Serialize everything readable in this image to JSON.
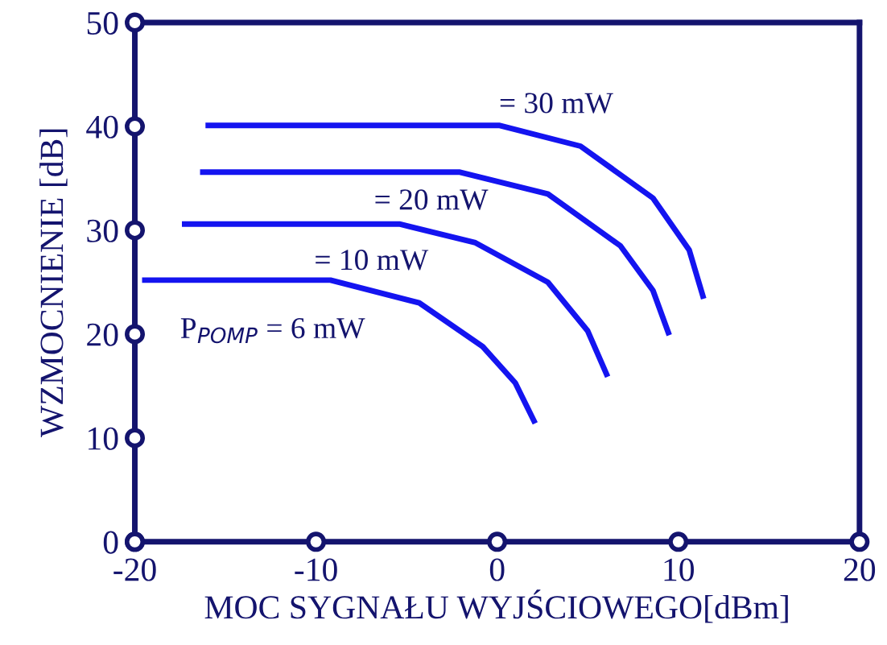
{
  "chart_data": {
    "type": "line",
    "xlabel": "MOC SYGNAŁU WYJŚCIOWEGO[dBm]",
    "ylabel": "WZMOCNIENIE [dB]",
    "xlim": [
      -20,
      20
    ],
    "ylim": [
      0,
      50
    ],
    "xticks": [
      -20,
      -10,
      0,
      10,
      20
    ],
    "yticks": [
      0,
      10,
      20,
      30,
      40,
      50
    ],
    "grid": false,
    "legend": false,
    "marker": "none",
    "line_style": "solid",
    "series": [
      {
        "name": "P$_{POMP}$ = 6 mW",
        "color": "#1414f0",
        "x": [
          -19.6,
          -9.2,
          -4.3,
          -0.8,
          1.0,
          2.1
        ],
        "values": [
          25.2,
          25.2,
          23.0,
          18.8,
          15.3,
          11.4
        ]
      },
      {
        "name": "= 10 mW",
        "color": "#1414f0",
        "x": [
          -17.4,
          -5.4,
          -1.2,
          2.8,
          5.0,
          6.1
        ],
        "values": [
          30.6,
          30.6,
          28.8,
          25.0,
          20.3,
          15.9
        ]
      },
      {
        "name": "= 20 mW",
        "color": "#1414f0",
        "x": [
          -16.4,
          -2.1,
          2.8,
          6.8,
          8.6,
          9.5
        ],
        "values": [
          35.6,
          35.6,
          33.5,
          28.5,
          24.2,
          19.9
        ]
      },
      {
        "name": "= 30 mW",
        "color": "#1414f0",
        "x": [
          -16.1,
          0.1,
          4.6,
          8.6,
          10.6,
          11.4
        ],
        "values": [
          40.1,
          40.1,
          38.1,
          33.1,
          28.1,
          23.4
        ]
      }
    ]
  }
}
